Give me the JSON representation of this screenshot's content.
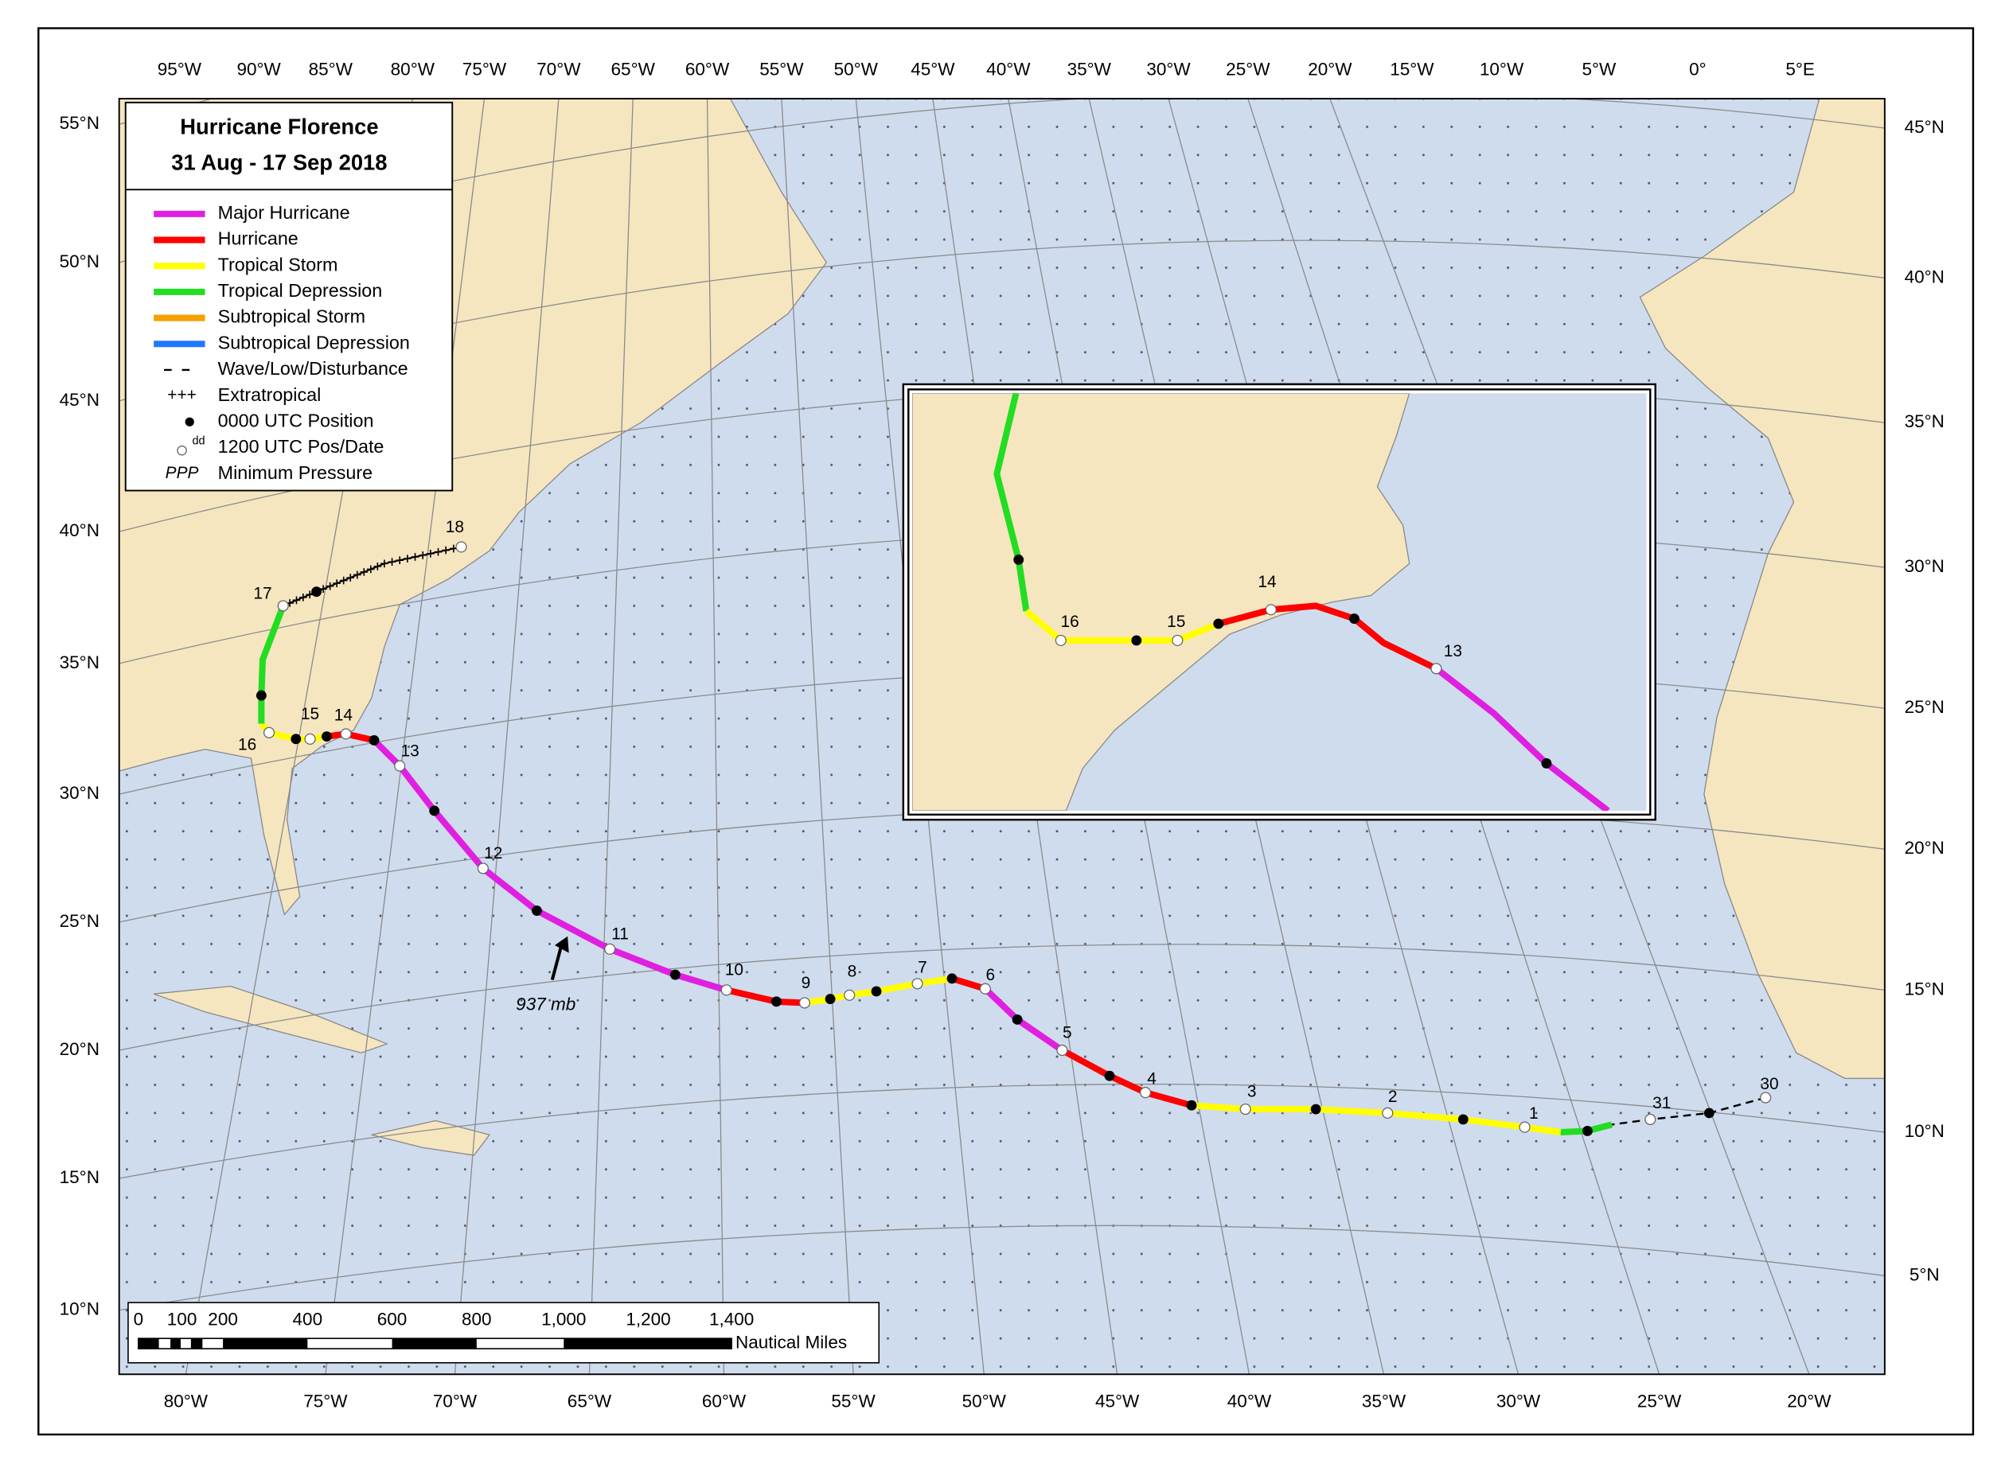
{
  "title": "Hurricane Florence",
  "subtitle": "31 Aug - 17 Sep 2018",
  "legend": [
    {
      "label": "Major Hurricane",
      "color": "#e020e0"
    },
    {
      "label": "Hurricane",
      "color": "#ff0000"
    },
    {
      "label": "Tropical Storm",
      "color": "#ffff00"
    },
    {
      "label": "Tropical Depression",
      "color": "#22dd22"
    },
    {
      "label": "Subtropical Storm",
      "color": "#f5a000"
    },
    {
      "label": "Subtropical Depression",
      "color": "#1e78ff"
    },
    {
      "label": "Wave/Low/Disturbance"
    },
    {
      "label": "Extratropical",
      "symbol": "+++"
    },
    {
      "label": "0000 UTC Position"
    },
    {
      "label": "1200 UTC Pos/Date",
      "symbol": "dd"
    },
    {
      "label": "Minimum Pressure",
      "symbol": "PPP"
    }
  ],
  "top_axis": [
    "95°W",
    "90°W",
    "85°W",
    "80°W",
    "75°W",
    "70°W",
    "65°W",
    "60°W",
    "55°W",
    "50°W",
    "45°W",
    "40°W",
    "35°W",
    "30°W",
    "25°W",
    "20°W",
    "15°W",
    "10°W",
    "5°W",
    "0°",
    "5°E"
  ],
  "bottom_axis": [
    "80°W",
    "75°W",
    "70°W",
    "65°W",
    "60°W",
    "55°W",
    "50°W",
    "45°W",
    "40°W",
    "35°W",
    "30°W",
    "25°W",
    "20°W"
  ],
  "left_axis": [
    "55°N",
    "50°N",
    "45°N",
    "40°N",
    "35°N",
    "30°N",
    "25°N",
    "20°N",
    "15°N",
    "10°N"
  ],
  "right_axis": [
    "45°N",
    "40°N",
    "35°N",
    "30°N",
    "25°N",
    "20°N",
    "15°N",
    "10°N",
    "5°N"
  ],
  "date_labels": [
    "30",
    "31",
    "1",
    "2",
    "3",
    "4",
    "5",
    "6",
    "7",
    "8",
    "9",
    "10",
    "11",
    "12",
    "13",
    "14",
    "15",
    "16",
    "17",
    "18"
  ],
  "pressure": "937 mb",
  "scale": {
    "ticks": [
      "0",
      "100",
      "200",
      "400",
      "600",
      "800",
      "1,000",
      "1,200",
      "1,400"
    ],
    "unit": "Nautical Miles"
  },
  "inset_date_labels": [
    "16",
    "15",
    "14",
    "13"
  ]
}
